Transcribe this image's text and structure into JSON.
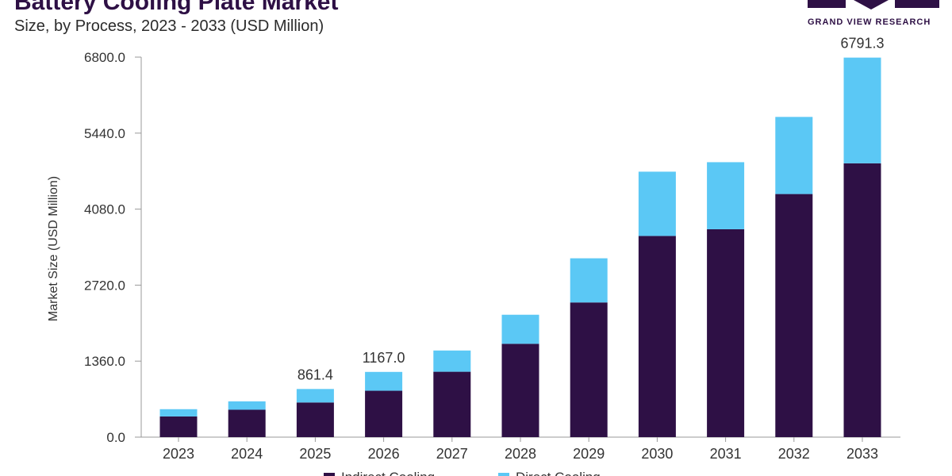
{
  "header": {
    "title": "Battery Cooling Plate Market",
    "subtitle": "Size, by Process, 2023 - 2033 (USD Million)"
  },
  "logo": {
    "text": "GRAND VIEW RESEARCH"
  },
  "colors": {
    "indirect": "#2e1045",
    "direct": "#5bc8f5",
    "axis": "#999999",
    "text": "#333333",
    "brand": "#2e1045"
  },
  "legend": {
    "items": [
      "Indirect Cooling",
      "Direct Cooling"
    ]
  },
  "chart_data": {
    "type": "bar",
    "stacked": true,
    "categories": [
      "2023",
      "2024",
      "2025",
      "2026",
      "2027",
      "2028",
      "2029",
      "2030",
      "2031",
      "2032",
      "2033"
    ],
    "series": [
      {
        "name": "Indirect Cooling",
        "values": [
          370,
          490,
          620,
          830,
          1170,
          1670,
          2410,
          3600,
          3720,
          4350,
          4900
        ]
      },
      {
        "name": "Direct Cooling",
        "values": [
          130,
          150,
          241.4,
          337,
          380,
          520,
          790,
          1150,
          1200,
          1380,
          1891.3
        ]
      }
    ],
    "data_labels": [
      {
        "category": "2025",
        "text": "861.4"
      },
      {
        "category": "2026",
        "text": "1167.0"
      },
      {
        "category": "2033",
        "text": "6791.3"
      }
    ],
    "ylabel": "Market Size (USD Million)",
    "yticks": [
      "0.0",
      "1360.0",
      "2720.0",
      "4080.0",
      "5440.0",
      "6800.0"
    ],
    "ylim": [
      0,
      6800
    ],
    "grid": false,
    "legend_position": "bottom"
  }
}
